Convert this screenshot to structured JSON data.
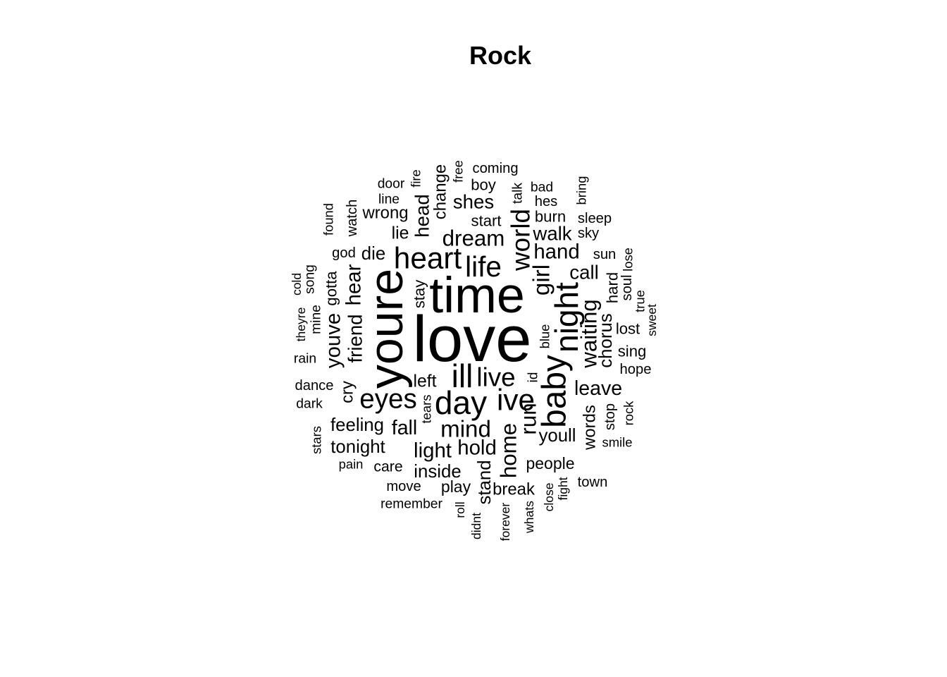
{
  "chart_data": {
    "type": "wordcloud",
    "title": "Rock",
    "words": [
      {
        "text": "love",
        "weight": 100
      },
      {
        "text": "time",
        "weight": 78
      },
      {
        "text": "youre",
        "weight": 74
      },
      {
        "text": "baby",
        "weight": 52
      },
      {
        "text": "day",
        "weight": 50
      },
      {
        "text": "ill",
        "weight": 50
      },
      {
        "text": "night",
        "weight": 50
      },
      {
        "text": "heart",
        "weight": 46
      },
      {
        "text": "ive",
        "weight": 46
      },
      {
        "text": "life",
        "weight": 44
      },
      {
        "text": "eyes",
        "weight": 42
      },
      {
        "text": "world",
        "weight": 40
      },
      {
        "text": "live",
        "weight": 40
      },
      {
        "text": "girl",
        "weight": 36
      },
      {
        "text": "mind",
        "weight": 36
      },
      {
        "text": "waiting",
        "weight": 34
      },
      {
        "text": "run",
        "weight": 34
      },
      {
        "text": "home",
        "weight": 34
      },
      {
        "text": "youve",
        "weight": 32
      },
      {
        "text": "dream",
        "weight": 34
      },
      {
        "text": "hand",
        "weight": 32
      },
      {
        "text": "hear",
        "weight": 32
      },
      {
        "text": "friend",
        "weight": 30
      },
      {
        "text": "light",
        "weight": 32
      },
      {
        "text": "hold",
        "weight": 32
      },
      {
        "text": "leave",
        "weight": 31
      },
      {
        "text": "call",
        "weight": 30
      },
      {
        "text": "walk",
        "weight": 30
      },
      {
        "text": "fall",
        "weight": 31
      },
      {
        "text": "head",
        "weight": 30
      },
      {
        "text": "chorus",
        "weight": 28
      },
      {
        "text": "shes",
        "weight": 30
      },
      {
        "text": "stand",
        "weight": 28
      },
      {
        "text": "die",
        "weight": 28
      },
      {
        "text": "feeling",
        "weight": 28
      },
      {
        "text": "tonight",
        "weight": 28
      },
      {
        "text": "youll",
        "weight": 28
      },
      {
        "text": "inside",
        "weight": 28
      },
      {
        "text": "cry",
        "weight": 26
      },
      {
        "text": "lie",
        "weight": 27
      },
      {
        "text": "left",
        "weight": 27
      },
      {
        "text": "change",
        "weight": 26
      },
      {
        "text": "words",
        "weight": 26
      },
      {
        "text": "break",
        "weight": 26
      },
      {
        "text": "wrong",
        "weight": 26
      },
      {
        "text": "people",
        "weight": 25
      },
      {
        "text": "stay",
        "weight": 24
      },
      {
        "text": "play",
        "weight": 25
      },
      {
        "text": "gotta",
        "weight": 24
      },
      {
        "text": "hard",
        "weight": 24
      },
      {
        "text": "lost",
        "weight": 24
      },
      {
        "text": "sing",
        "weight": 24
      },
      {
        "text": "start",
        "weight": 24
      },
      {
        "text": "burn",
        "weight": 24
      },
      {
        "text": "boy",
        "weight": 24
      },
      {
        "text": "watch",
        "weight": 22
      },
      {
        "text": "coming",
        "weight": 22
      },
      {
        "text": "stop",
        "weight": 22
      },
      {
        "text": "care",
        "weight": 23
      },
      {
        "text": "dance",
        "weight": 22
      },
      {
        "text": "hope",
        "weight": 22
      },
      {
        "text": "sun",
        "weight": 22
      },
      {
        "text": "sky",
        "weight": 22
      },
      {
        "text": "sleep",
        "weight": 22
      },
      {
        "text": "hes",
        "weight": 22
      },
      {
        "text": "move",
        "weight": 22
      },
      {
        "text": "town",
        "weight": 22
      },
      {
        "text": "remember",
        "weight": 21
      },
      {
        "text": "god",
        "weight": 22
      },
      {
        "text": "soul",
        "weight": 22
      },
      {
        "text": "mine",
        "weight": 21
      },
      {
        "text": "song",
        "weight": 21
      },
      {
        "text": "line",
        "weight": 21
      },
      {
        "text": "door",
        "weight": 21
      },
      {
        "text": "rain",
        "weight": 21
      },
      {
        "text": "dark",
        "weight": 21
      },
      {
        "text": "talk",
        "weight": 21
      },
      {
        "text": "bad",
        "weight": 21
      },
      {
        "text": "id",
        "weight": 21
      },
      {
        "text": "blue",
        "weight": 20
      },
      {
        "text": "tears",
        "weight": 20
      },
      {
        "text": "fire",
        "weight": 20
      },
      {
        "text": "free",
        "weight": 20
      },
      {
        "text": "found",
        "weight": 20
      },
      {
        "text": "lose",
        "weight": 20
      },
      {
        "text": "smile",
        "weight": 20
      },
      {
        "text": "rock",
        "weight": 20
      },
      {
        "text": "true",
        "weight": 20
      },
      {
        "text": "bring",
        "weight": 20
      },
      {
        "text": "stars",
        "weight": 20
      },
      {
        "text": "pain",
        "weight": 20
      },
      {
        "text": "cold",
        "weight": 19
      },
      {
        "text": "theyre",
        "weight": 19
      },
      {
        "text": "sweet",
        "weight": 19
      },
      {
        "text": "close",
        "weight": 19
      },
      {
        "text": "fight",
        "weight": 19
      },
      {
        "text": "forever",
        "weight": 19
      },
      {
        "text": "whats",
        "weight": 19
      },
      {
        "text": "didnt",
        "weight": 19
      },
      {
        "text": "roll",
        "weight": 19
      }
    ]
  }
}
